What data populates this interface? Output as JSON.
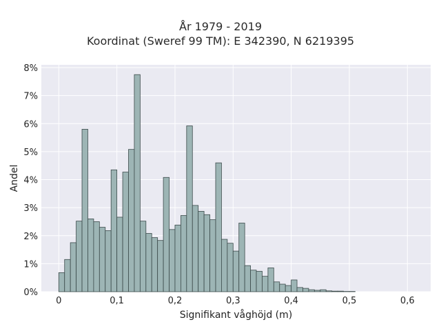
{
  "chart_data": {
    "type": "bar",
    "title_line1": "År 1979 - 2019",
    "title_line2": "Koordinat (Sweref 99 TM): E 342390, N 6219395",
    "xlabel": "Signifikant våghöjd (m)",
    "ylabel": "Andel",
    "xlim": [
      -0.03,
      0.64
    ],
    "ylim": [
      0,
      8.1
    ],
    "x_ticks": [
      "0",
      "0,1",
      "0,2",
      "0,3",
      "0,4",
      "0,5",
      "0,6"
    ],
    "x_tick_values": [
      0,
      0.1,
      0.2,
      0.3,
      0.4,
      0.5,
      0.6
    ],
    "y_ticks": [
      "0%",
      "1%",
      "2%",
      "3%",
      "4%",
      "5%",
      "6%",
      "7%",
      "8%"
    ],
    "y_tick_values": [
      0,
      1,
      2,
      3,
      4,
      5,
      6,
      7,
      8
    ],
    "bin_start": 0.0,
    "bin_width": 0.01,
    "values": [
      0.68,
      1.15,
      1.75,
      2.52,
      5.8,
      2.6,
      2.5,
      2.3,
      2.18,
      4.35,
      2.66,
      4.27,
      5.08,
      7.75,
      2.52,
      2.08,
      1.93,
      1.83,
      4.08,
      2.22,
      2.38,
      2.72,
      5.92,
      3.08,
      2.87,
      2.75,
      2.57,
      4.6,
      1.87,
      1.73,
      1.45,
      2.45,
      0.93,
      0.77,
      0.73,
      0.55,
      0.85,
      0.35,
      0.27,
      0.22,
      0.42,
      0.15,
      0.12,
      0.07,
      0.05,
      0.07,
      0.03,
      0.02,
      0.02,
      0.01,
      0.01
    ],
    "grid": true,
    "bar_color": "#9db5b5",
    "bar_edge_color": "#3b4a4a",
    "background_color": "#eaeaf2"
  }
}
